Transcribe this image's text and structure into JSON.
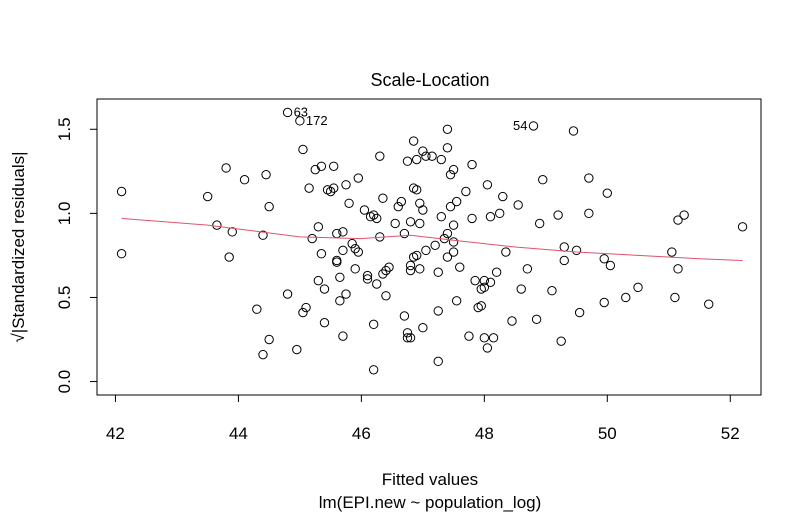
{
  "chart_data": {
    "type": "scatter",
    "title": "Scale-Location",
    "xlabel": "Fitted values",
    "subtitle": "lm(EPI.new ~ population_log)",
    "ylabel": "√|Standardized residuals|",
    "xlim": [
      41.7,
      52.5
    ],
    "ylim": [
      -0.08,
      1.68
    ],
    "xticks": [
      42,
      44,
      46,
      48,
      50,
      52
    ],
    "yticks": [
      0.0,
      0.5,
      1.0,
      1.5
    ],
    "ytick_labels": [
      "0.0",
      "0.5",
      "1.0",
      "1.5"
    ],
    "grid": false,
    "smoother_color": "#DF536B",
    "point_labels": [
      {
        "label": "63",
        "x": 44.8,
        "y": 1.6
      },
      {
        "label": "172",
        "x": 45.0,
        "y": 1.55
      },
      {
        "label": "54",
        "x": 48.8,
        "y": 1.52
      }
    ],
    "smoother": {
      "x": [
        42.1,
        43.5,
        45.0,
        46.0,
        46.8,
        47.5,
        48.5,
        49.5,
        50.5,
        51.5,
        52.2
      ],
      "y": [
        0.97,
        0.93,
        0.86,
        0.85,
        0.87,
        0.84,
        0.8,
        0.77,
        0.75,
        0.73,
        0.72
      ]
    },
    "points": [
      [
        42.1,
        1.13
      ],
      [
        42.1,
        0.76
      ],
      [
        43.5,
        1.1
      ],
      [
        43.65,
        0.93
      ],
      [
        43.8,
        1.27
      ],
      [
        43.85,
        0.74
      ],
      [
        43.9,
        0.89
      ],
      [
        44.1,
        1.2
      ],
      [
        44.3,
        0.43
      ],
      [
        44.4,
        0.87
      ],
      [
        44.4,
        0.16
      ],
      [
        44.45,
        1.23
      ],
      [
        44.5,
        1.04
      ],
      [
        44.5,
        0.25
      ],
      [
        44.8,
        1.6
      ],
      [
        44.8,
        0.52
      ],
      [
        44.95,
        0.19
      ],
      [
        45.0,
        1.55
      ],
      [
        45.05,
        1.38
      ],
      [
        45.05,
        0.41
      ],
      [
        45.1,
        0.44
      ],
      [
        45.15,
        1.15
      ],
      [
        45.2,
        0.85
      ],
      [
        45.25,
        1.26
      ],
      [
        45.3,
        0.6
      ],
      [
        45.3,
        0.92
      ],
      [
        45.35,
        1.28
      ],
      [
        45.35,
        0.76
      ],
      [
        45.4,
        0.35
      ],
      [
        45.4,
        0.55
      ],
      [
        45.45,
        1.14
      ],
      [
        45.5,
        1.13
      ],
      [
        45.55,
        1.28
      ],
      [
        45.55,
        1.15
      ],
      [
        45.6,
        0.88
      ],
      [
        45.6,
        0.71
      ],
      [
        45.6,
        0.72
      ],
      [
        45.65,
        0.48
      ],
      [
        45.65,
        0.62
      ],
      [
        45.7,
        0.89
      ],
      [
        45.7,
        0.78
      ],
      [
        45.7,
        0.27
      ],
      [
        45.75,
        1.17
      ],
      [
        45.75,
        0.52
      ],
      [
        45.8,
        1.06
      ],
      [
        45.85,
        0.82
      ],
      [
        45.9,
        0.79
      ],
      [
        45.9,
        0.67
      ],
      [
        45.95,
        0.77
      ],
      [
        45.95,
        1.21
      ],
      [
        46.05,
        1.02
      ],
      [
        46.1,
        0.61
      ],
      [
        46.1,
        0.63
      ],
      [
        46.15,
        0.98
      ],
      [
        46.2,
        0.99
      ],
      [
        46.2,
        0.34
      ],
      [
        46.2,
        0.07
      ],
      [
        46.25,
        0.97
      ],
      [
        46.25,
        0.58
      ],
      [
        46.3,
        1.34
      ],
      [
        46.3,
        0.86
      ],
      [
        46.35,
        1.09
      ],
      [
        46.35,
        0.64
      ],
      [
        46.4,
        0.66
      ],
      [
        46.4,
        0.51
      ],
      [
        46.45,
        0.68
      ],
      [
        46.55,
        0.94
      ],
      [
        46.6,
        1.04
      ],
      [
        46.65,
        1.07
      ],
      [
        46.7,
        0.88
      ],
      [
        46.7,
        0.39
      ],
      [
        46.75,
        1.31
      ],
      [
        46.75,
        0.29
      ],
      [
        46.75,
        0.26
      ],
      [
        46.8,
        0.95
      ],
      [
        46.8,
        0.69
      ],
      [
        46.8,
        0.66
      ],
      [
        46.8,
        0.26
      ],
      [
        46.85,
        1.43
      ],
      [
        46.85,
        1.15
      ],
      [
        46.85,
        0.74
      ],
      [
        46.9,
        1.32
      ],
      [
        46.9,
        1.14
      ],
      [
        46.9,
        0.75
      ],
      [
        46.95,
        1.06
      ],
      [
        46.95,
        0.94
      ],
      [
        46.95,
        0.67
      ],
      [
        47.0,
        1.37
      ],
      [
        47.0,
        1.02
      ],
      [
        47.0,
        0.32
      ],
      [
        47.05,
        1.34
      ],
      [
        47.05,
        0.78
      ],
      [
        47.15,
        1.34
      ],
      [
        47.2,
        0.81
      ],
      [
        47.25,
        0.65
      ],
      [
        47.25,
        0.42
      ],
      [
        47.25,
        0.12
      ],
      [
        47.3,
        1.32
      ],
      [
        47.3,
        0.98
      ],
      [
        47.35,
        0.85
      ],
      [
        47.4,
        1.5
      ],
      [
        47.4,
        1.39
      ],
      [
        47.4,
        0.88
      ],
      [
        47.4,
        0.74
      ],
      [
        47.45,
        1.23
      ],
      [
        47.45,
        1.04
      ],
      [
        47.5,
        1.26
      ],
      [
        47.5,
        0.93
      ],
      [
        47.5,
        0.83
      ],
      [
        47.5,
        0.77
      ],
      [
        47.55,
        1.07
      ],
      [
        47.55,
        0.48
      ],
      [
        47.6,
        0.68
      ],
      [
        47.7,
        1.13
      ],
      [
        47.75,
        0.27
      ],
      [
        47.8,
        1.29
      ],
      [
        47.8,
        0.97
      ],
      [
        47.85,
        0.6
      ],
      [
        47.9,
        0.44
      ],
      [
        47.95,
        0.55
      ],
      [
        47.95,
        0.45
      ],
      [
        48.0,
        0.6
      ],
      [
        48.0,
        0.56
      ],
      [
        48.0,
        0.26
      ],
      [
        48.05,
        1.17
      ],
      [
        48.05,
        0.2
      ],
      [
        48.1,
        0.98
      ],
      [
        48.1,
        0.59
      ],
      [
        48.15,
        0.26
      ],
      [
        48.2,
        0.65
      ],
      [
        48.25,
        1.0
      ],
      [
        48.3,
        1.1
      ],
      [
        48.35,
        0.77
      ],
      [
        48.45,
        0.36
      ],
      [
        48.55,
        1.05
      ],
      [
        48.6,
        0.55
      ],
      [
        48.7,
        0.67
      ],
      [
        48.8,
        1.52
      ],
      [
        48.85,
        0.37
      ],
      [
        48.9,
        0.94
      ],
      [
        48.95,
        1.2
      ],
      [
        49.1,
        0.54
      ],
      [
        49.2,
        0.99
      ],
      [
        49.25,
        0.24
      ],
      [
        49.3,
        0.8
      ],
      [
        49.3,
        0.72
      ],
      [
        49.45,
        1.49
      ],
      [
        49.5,
        0.78
      ],
      [
        49.55,
        0.41
      ],
      [
        49.7,
        1.21
      ],
      [
        49.7,
        1.0
      ],
      [
        49.95,
        0.73
      ],
      [
        49.95,
        0.47
      ],
      [
        50.0,
        1.12
      ],
      [
        50.05,
        0.69
      ],
      [
        50.3,
        0.5
      ],
      [
        50.5,
        0.56
      ],
      [
        51.05,
        0.77
      ],
      [
        51.1,
        0.5
      ],
      [
        51.15,
        0.67
      ],
      [
        51.15,
        0.96
      ],
      [
        51.25,
        0.99
      ],
      [
        51.65,
        0.46
      ],
      [
        52.2,
        0.92
      ]
    ]
  }
}
